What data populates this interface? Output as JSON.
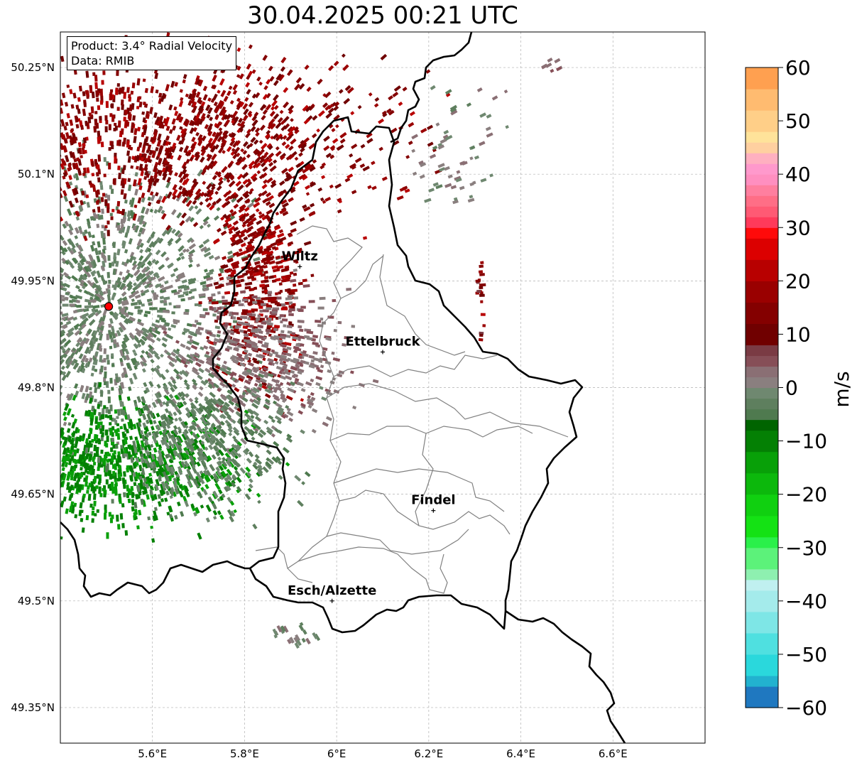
{
  "title": "30.04.2025 00:21 UTC",
  "info": {
    "product": "Product: 3.4° Radial Velocity",
    "data": "Data: RMIB"
  },
  "map": {
    "lon_range": [
      5.4,
      6.8
    ],
    "lat_range": [
      49.3,
      50.3
    ],
    "x_ticks": [
      {
        "value": 5.6,
        "label": "5.6°E"
      },
      {
        "value": 5.8,
        "label": "5.8°E"
      },
      {
        "value": 6.0,
        "label": "6°E"
      },
      {
        "value": 6.2,
        "label": "6.2°E"
      },
      {
        "value": 6.4,
        "label": "6.4°E"
      },
      {
        "value": 6.6,
        "label": "6.6°E"
      }
    ],
    "y_ticks": [
      {
        "value": 50.25,
        "label": "50.25°N"
      },
      {
        "value": 50.1,
        "label": "50.1°N"
      },
      {
        "value": 49.95,
        "label": "49.95°N"
      },
      {
        "value": 49.8,
        "label": "49.8°N"
      },
      {
        "value": 49.65,
        "label": "49.65°N"
      },
      {
        "value": 49.5,
        "label": "49.5°N"
      },
      {
        "value": 49.35,
        "label": "49.35°N"
      }
    ],
    "gridlines": true,
    "radar_site": {
      "lon": 5.505,
      "lat": 49.914
    },
    "cities": [
      {
        "name": "Wiltz",
        "lon": 5.92,
        "lat": 49.97
      },
      {
        "name": "Ettelbruck",
        "lon": 6.1,
        "lat": 49.85
      },
      {
        "name": "Findel",
        "lon": 6.21,
        "lat": 49.627
      },
      {
        "name": "Esch/Alzette",
        "lon": 5.99,
        "lat": 49.5
      }
    ],
    "colors": {
      "border": "#000000",
      "canton_lines": "#808080",
      "radar_marker": "#ff0000"
    }
  },
  "colorbar": {
    "unit": "m/s",
    "min": -60,
    "max": 60,
    "tick_values": [
      60,
      50,
      40,
      30,
      20,
      10,
      0,
      -10,
      -20,
      -30,
      -40,
      -50,
      -60
    ],
    "tick_labels": [
      "60",
      "50",
      "40",
      "30",
      "20",
      "10",
      "0",
      "−10",
      "−20",
      "−30",
      "−40",
      "−50",
      "−60"
    ],
    "bands": [
      {
        "from": -60,
        "to": -56,
        "color": "#1f78c0"
      },
      {
        "from": -56,
        "to": -54,
        "color": "#22b2cf"
      },
      {
        "from": -54,
        "to": -50,
        "color": "#2ad8dc"
      },
      {
        "from": -50,
        "to": -46,
        "color": "#4fe0e0"
      },
      {
        "from": -46,
        "to": -42,
        "color": "#7ee6e6"
      },
      {
        "from": -42,
        "to": -38,
        "color": "#a4ebeb"
      },
      {
        "from": -38,
        "to": -36,
        "color": "#c0f0f0"
      },
      {
        "from": -36,
        "to": -34,
        "color": "#8ef0b0"
      },
      {
        "from": -34,
        "to": -30,
        "color": "#5cf27a"
      },
      {
        "from": -30,
        "to": -28,
        "color": "#2af04a"
      },
      {
        "from": -28,
        "to": -24,
        "color": "#14e214"
      },
      {
        "from": -24,
        "to": -20,
        "color": "#10d010"
      },
      {
        "from": -20,
        "to": -16,
        "color": "#0cb80c"
      },
      {
        "from": -16,
        "to": -12,
        "color": "#08a008"
      },
      {
        "from": -12,
        "to": -8,
        "color": "#048004"
      },
      {
        "from": -8,
        "to": -6,
        "color": "#006400"
      },
      {
        "from": -6,
        "to": -4,
        "color": "#4f7a4f"
      },
      {
        "from": -4,
        "to": -2,
        "color": "#5e7f5e"
      },
      {
        "from": -2,
        "to": 0,
        "color": "#6f8870"
      },
      {
        "from": 0,
        "to": 2,
        "color": "#8a7f7f"
      },
      {
        "from": 2,
        "to": 4,
        "color": "#8a6f74"
      },
      {
        "from": 4,
        "to": 6,
        "color": "#864e57"
      },
      {
        "from": 6,
        "to": 8,
        "color": "#7a3b44"
      },
      {
        "from": 8,
        "to": 12,
        "color": "#700000"
      },
      {
        "from": 12,
        "to": 16,
        "color": "#840000"
      },
      {
        "from": 16,
        "to": 20,
        "color": "#9a0000"
      },
      {
        "from": 20,
        "to": 24,
        "color": "#b80000"
      },
      {
        "from": 24,
        "to": 28,
        "color": "#dc0000"
      },
      {
        "from": 28,
        "to": 30,
        "color": "#ff0a0a"
      },
      {
        "from": 30,
        "to": 32,
        "color": "#ff3a5a"
      },
      {
        "from": 32,
        "to": 34,
        "color": "#ff5a74"
      },
      {
        "from": 34,
        "to": 36,
        "color": "#ff6e86"
      },
      {
        "from": 36,
        "to": 38,
        "color": "#ff7f9f"
      },
      {
        "from": 38,
        "to": 40,
        "color": "#ff8fc0"
      },
      {
        "from": 40,
        "to": 42,
        "color": "#ff99cc"
      },
      {
        "from": 42,
        "to": 44,
        "color": "#ffb0c0"
      },
      {
        "from": 44,
        "to": 46,
        "color": "#ffd0a0"
      },
      {
        "from": 46,
        "to": 48,
        "color": "#ffe39a"
      },
      {
        "from": 48,
        "to": 52,
        "color": "#ffcf88"
      },
      {
        "from": 52,
        "to": 56,
        "color": "#ffbb70"
      },
      {
        "from": 56,
        "to": 60,
        "color": "#ffa050"
      }
    ]
  }
}
